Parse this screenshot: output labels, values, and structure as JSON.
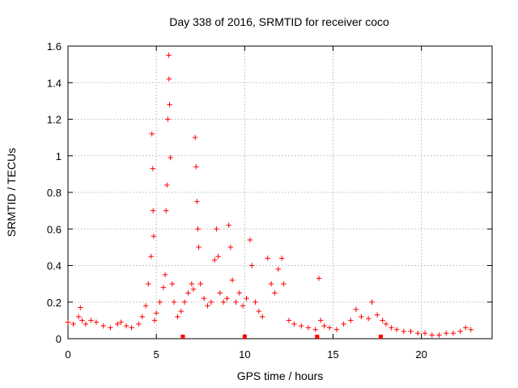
{
  "chart_data": {
    "type": "scatter",
    "title": "Day 338 of 2016, SRMTID for receiver coco",
    "xlabel": "GPS time / hours",
    "ylabel": "SRMTID / TECUs",
    "xlim": [
      0,
      24
    ],
    "ylim": [
      0,
      1.6
    ],
    "xticks": [
      "0",
      "5",
      "10",
      "15",
      "20"
    ],
    "yticks": [
      "0",
      "0.2",
      "0.4",
      "0.6",
      "0.8",
      "1",
      "1.2",
      "1.4",
      "1.6"
    ],
    "grid": true,
    "marker": "+",
    "color": "#ff0000",
    "series": [
      {
        "name": "SRMTID",
        "x": [
          0.0,
          0.3,
          0.6,
          0.7,
          0.8,
          1.0,
          1.3,
          1.6,
          2.0,
          2.4,
          2.8,
          3.0,
          3.3,
          3.6,
          4.0,
          4.2,
          4.4,
          4.55,
          4.7,
          4.75,
          4.8,
          4.82,
          4.85,
          4.9,
          5.0,
          5.2,
          5.4,
          5.5,
          5.55,
          5.6,
          5.65,
          5.7,
          5.72,
          5.75,
          5.8,
          5.9,
          6.0,
          6.2,
          6.4,
          6.6,
          6.8,
          7.0,
          7.1,
          7.2,
          7.25,
          7.3,
          7.35,
          7.4,
          7.5,
          7.7,
          7.9,
          8.1,
          8.3,
          8.4,
          8.5,
          8.6,
          8.8,
          9.0,
          9.1,
          9.2,
          9.3,
          9.5,
          9.7,
          9.9,
          10.1,
          10.3,
          10.4,
          10.6,
          10.8,
          11.0,
          11.3,
          11.5,
          11.7,
          11.9,
          12.1,
          12.2,
          12.5,
          12.8,
          13.2,
          13.6,
          14.0,
          14.2,
          14.3,
          14.5,
          14.8,
          15.2,
          15.6,
          16.0,
          16.3,
          16.6,
          17.0,
          17.2,
          17.5,
          17.8,
          18.0,
          18.3,
          18.6,
          19.0,
          19.4,
          19.8,
          20.2,
          20.6,
          21.0,
          21.4,
          21.8,
          22.2,
          22.5,
          22.8
        ],
        "y": [
          0.09,
          0.08,
          0.12,
          0.17,
          0.1,
          0.08,
          0.1,
          0.09,
          0.07,
          0.06,
          0.08,
          0.09,
          0.07,
          0.06,
          0.08,
          0.12,
          0.18,
          0.3,
          0.45,
          1.12,
          0.93,
          0.7,
          0.56,
          0.1,
          0.14,
          0.2,
          0.28,
          0.35,
          0.7,
          0.84,
          1.2,
          1.55,
          1.42,
          1.28,
          0.99,
          0.3,
          0.2,
          0.12,
          0.15,
          0.2,
          0.25,
          0.3,
          0.27,
          1.1,
          0.94,
          0.75,
          0.6,
          0.5,
          0.3,
          0.22,
          0.18,
          0.2,
          0.43,
          0.6,
          0.45,
          0.25,
          0.2,
          0.22,
          0.62,
          0.5,
          0.32,
          0.2,
          0.25,
          0.18,
          0.22,
          0.54,
          0.4,
          0.2,
          0.15,
          0.12,
          0.44,
          0.3,
          0.25,
          0.38,
          0.44,
          0.3,
          0.1,
          0.08,
          0.07,
          0.06,
          0.05,
          0.33,
          0.1,
          0.07,
          0.06,
          0.05,
          0.08,
          0.1,
          0.16,
          0.12,
          0.11,
          0.2,
          0.13,
          0.1,
          0.08,
          0.06,
          0.05,
          0.04,
          0.04,
          0.03,
          0.03,
          0.02,
          0.02,
          0.03,
          0.03,
          0.04,
          0.06,
          0.05
        ]
      }
    ],
    "gaps_x": [
      6.5,
      10.0,
      14.1,
      17.7
    ]
  }
}
